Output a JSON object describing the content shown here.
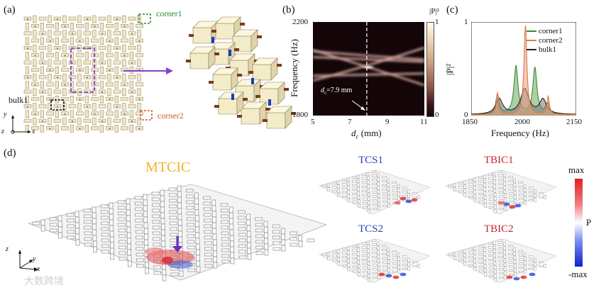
{
  "panels": {
    "a": {
      "label": "(a)",
      "corner1_label": "corner1",
      "corner2_label": "corner2",
      "bulk1_label": "bulk1",
      "axis_x": "x",
      "axis_y": "y",
      "axis_z": "z",
      "colors": {
        "cell": "#efe7c6",
        "cell_edge": "#8a7a55",
        "rod": "#7a3b1c",
        "blue": "#1a3fb5",
        "corner1": "#2f8a2f",
        "corner2": "#d0592a",
        "purple": "#8b3fc6"
      }
    },
    "b": {
      "label": "(b)",
      "colorbar_title": "|P|²",
      "colorbar_max": "1",
      "colorbar_min": "0",
      "annotation": "dc=7.9 mm",
      "annotation_var": "d",
      "annotation_sub": "c",
      "annotation_rest": "=7.9 mm",
      "chart_data": {
        "type": "heatmap",
        "xlabel_var": "d",
        "xlabel_sub": "c",
        "xlabel_unit": "(mm)",
        "ylabel": "Frequency (Hz)",
        "xlim": [
          5,
          11
        ],
        "ylim": [
          1800,
          2200
        ],
        "xticks": [
          "5",
          "7",
          "9",
          "11"
        ],
        "yticks": [
          "1800",
          "2200"
        ],
        "marker_x": 7.9,
        "bands": [
          {
            "x": [
              5,
              7.9,
              11
            ],
            "y": [
              2075,
              2055,
              2040
            ]
          },
          {
            "x": [
              5,
              7.9,
              11
            ],
            "y": [
              2050,
              2040,
              2030
            ]
          },
          {
            "x": [
              5,
              7.9,
              11
            ],
            "y": [
              1950,
              2010,
              2090
            ]
          },
          {
            "x": [
              5,
              7.9,
              11
            ],
            "y": [
              2080,
              2010,
              1930
            ]
          },
          {
            "x": [
              5,
              7.9,
              11
            ],
            "y": [
              1970,
              1975,
              1980
            ]
          }
        ]
      }
    },
    "c": {
      "label": "(c)",
      "chart_data": {
        "type": "line",
        "xlabel": "Frequency (Hz)",
        "ylabel": "|P|²",
        "xlim": [
          1850,
          2150
        ],
        "ylim": [
          0,
          1
        ],
        "xticks": [
          "1850",
          "2000",
          "2150"
        ],
        "yticks": [
          "0",
          "1"
        ],
        "legend_position": "top-right",
        "series": [
          {
            "name": "corner1",
            "color": "#3a8a3a",
            "fill": "#6aa85a",
            "peaks": [
              {
                "x": 1925,
                "h": 0.21,
                "w": 6
              },
              {
                "x": 1978,
                "h": 0.53,
                "w": 7
              },
              {
                "x": 2032,
                "h": 0.51,
                "w": 7
              },
              {
                "x": 2068,
                "h": 0.12,
                "w": 6
              }
            ]
          },
          {
            "name": "corner2",
            "color": "#e07a4a",
            "fill": "#e8a07a",
            "peaks": [
              {
                "x": 1925,
                "h": 0.24,
                "w": 4
              },
              {
                "x": 2005,
                "h": 0.98,
                "w": 5
              },
              {
                "x": 2070,
                "h": 0.2,
                "w": 4
              }
            ]
          },
          {
            "name": "bulk1",
            "color": "#222222",
            "fill": "#777777",
            "peaks": [
              {
                "x": 1930,
                "h": 0.17,
                "w": 12
              },
              {
                "x": 2003,
                "h": 0.28,
                "w": 14
              },
              {
                "x": 2055,
                "h": 0.16,
                "w": 12
              }
            ]
          }
        ]
      }
    },
    "d": {
      "label": "(d)",
      "title": "MTCIC",
      "small_titles": [
        "TCS1",
        "TBIC1",
        "TCS2",
        "TBIC2"
      ],
      "colorbar_max": "max",
      "colorbar_mid": "P",
      "colorbar_min": "-max",
      "axis_x": "x",
      "axis_y": "y",
      "axis_z": "z",
      "colors": {
        "title": "#f0b324",
        "tcs": "#2a3fb0",
        "tbic": "#c4262e"
      }
    }
  },
  "watermark": "大数跨境"
}
